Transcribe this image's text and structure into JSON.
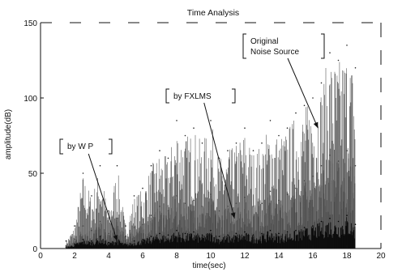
{
  "chart_data": {
    "type": "line",
    "title": "Time Analysis",
    "xlabel": "time(sec)",
    "ylabel": "amplitude(dB)",
    "xlim": [
      0,
      20
    ],
    "ylim": [
      0,
      150
    ],
    "xticks": [
      0,
      2,
      4,
      6,
      8,
      10,
      12,
      14,
      16,
      18,
      20
    ],
    "xtick_labels": [
      "0",
      "2",
      "4",
      "6",
      "8",
      "10",
      "12",
      "14",
      "16",
      "18",
      "20"
    ],
    "yticks": [
      0,
      50,
      100,
      150
    ],
    "ytick_labels": [
      "0",
      "50",
      "100",
      "150"
    ],
    "grid": false,
    "series": [
      {
        "name": "Original Noise Source",
        "color": "#222222",
        "x": [
          1.5,
          2.0,
          2.5,
          3.0,
          3.5,
          4.0,
          4.5,
          5.0,
          5.5,
          6.0,
          6.5,
          7.0,
          7.5,
          8.0,
          8.5,
          9.0,
          9.5,
          10.0,
          10.5,
          11.0,
          11.5,
          12.0,
          12.5,
          13.0,
          13.5,
          14.0,
          14.5,
          15.0,
          15.5,
          16.0,
          16.5,
          17.0,
          17.5,
          18.0,
          18.5
        ],
        "y": [
          5,
          15,
          50,
          35,
          55,
          25,
          55,
          15,
          35,
          40,
          55,
          65,
          60,
          85,
          75,
          80,
          70,
          85,
          60,
          65,
          70,
          80,
          65,
          70,
          85,
          75,
          80,
          90,
          95,
          100,
          110,
          130,
          125,
          135,
          120
        ]
      },
      {
        "name": "by FXLMS",
        "color": "#444444",
        "x": [
          1.5,
          2.0,
          2.5,
          3.0,
          3.5,
          4.0,
          4.5,
          5.0,
          5.5,
          6.0,
          6.5,
          7.0,
          7.5,
          8.0,
          8.5,
          9.0,
          9.5,
          10.0,
          10.5,
          11.0,
          11.5,
          12.0,
          12.5,
          13.0,
          13.5,
          14.0,
          14.5,
          15.0,
          15.5,
          16.0,
          16.5,
          17.0,
          17.5,
          18.0,
          18.5
        ],
        "y": [
          2,
          6,
          15,
          12,
          18,
          10,
          20,
          8,
          14,
          16,
          22,
          28,
          25,
          35,
          30,
          32,
          28,
          36,
          25,
          28,
          30,
          34,
          28,
          30,
          38,
          32,
          36,
          40,
          45,
          48,
          55,
          62,
          58,
          65,
          55
        ]
      },
      {
        "name": "by WP",
        "color": "#000000",
        "x": [
          1.5,
          2.0,
          2.5,
          3.0,
          3.5,
          4.0,
          4.5,
          5.0,
          5.5,
          6.0,
          6.5,
          7.0,
          7.5,
          8.0,
          8.5,
          9.0,
          9.5,
          10.0,
          10.5,
          11.0,
          11.5,
          12.0,
          12.5,
          13.0,
          13.5,
          14.0,
          14.5,
          15.0,
          15.5,
          16.0,
          16.5,
          17.0,
          17.5,
          18.0,
          18.5
        ],
        "y": [
          1,
          3,
          6,
          5,
          8,
          4,
          7,
          3,
          5,
          6,
          8,
          10,
          9,
          12,
          10,
          11,
          9,
          12,
          8,
          9,
          10,
          11,
          9,
          10,
          12,
          10,
          11,
          12,
          14,
          15,
          18,
          20,
          18,
          22,
          16
        ]
      }
    ],
    "annotations": [
      {
        "lines": [
          "by  W P"
        ],
        "target_x": 4.5,
        "target_y": 5
      },
      {
        "lines": [
          "by  FXLMS"
        ],
        "target_x": 11.4,
        "target_y": 20
      },
      {
        "lines": [
          "Original",
          "Noise Source"
        ],
        "target_x": 16.3,
        "target_y": 80
      }
    ]
  }
}
